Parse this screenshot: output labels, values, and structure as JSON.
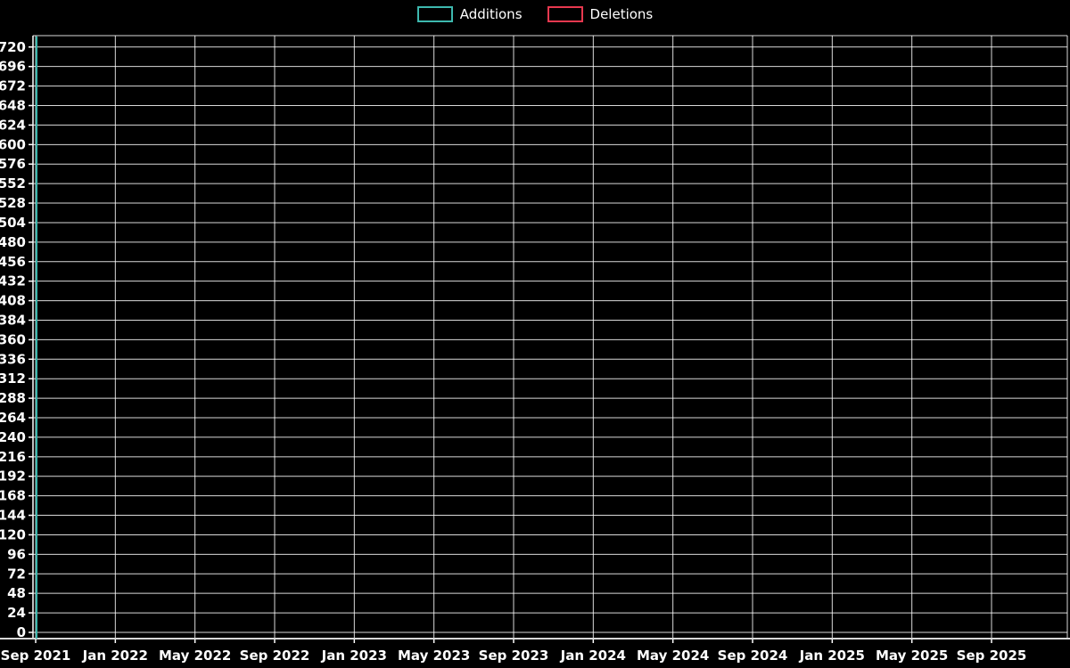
{
  "page": {
    "background": "#000000",
    "text_color": "#ffffff"
  },
  "legend": {
    "position": "top-center",
    "items_from_series": true
  },
  "chart_data": {
    "type": "line",
    "title": "",
    "xlabel": "",
    "ylabel": "",
    "x_tick_labels": [
      "Sep 2021",
      "Jan 2022",
      "May 2022",
      "Sep 2022",
      "Jan 2023",
      "May 2023",
      "Sep 2023",
      "Jan 2024",
      "May 2024",
      "Sep 2024",
      "Jan 2025",
      "May 2025",
      "Sep 2025"
    ],
    "y_ticks": [
      0,
      24,
      48,
      72,
      96,
      120,
      144,
      168,
      192,
      216,
      240,
      264,
      288,
      312,
      336,
      360,
      384,
      408,
      432,
      456,
      480,
      504,
      528,
      552,
      576,
      600,
      624,
      648,
      672,
      696,
      720
    ],
    "ylim": [
      0,
      734
    ],
    "grid": true,
    "grid_color": "#ffffff",
    "axis_color": "#d8d8d8",
    "background": "#000000",
    "text_color": "#ffffff",
    "legend_position": "top-center",
    "series": [
      {
        "name": "Additions",
        "color": "#3db8ae",
        "points": [
          {
            "x_label": "Sep 2021",
            "x_index": 0,
            "value": 733
          }
        ]
      },
      {
        "name": "Deletions",
        "color": "#e8384f",
        "points": [
          {
            "x_label": "Sep 2021",
            "x_index": 0,
            "value": 0
          }
        ]
      }
    ]
  }
}
